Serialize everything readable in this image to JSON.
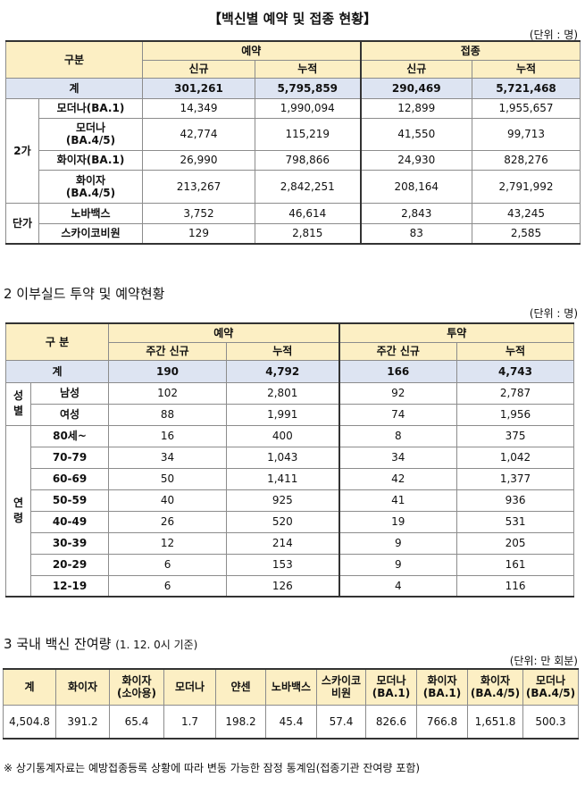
{
  "section1": {
    "title": "【백신별 예약 및 접종 현황】",
    "unit": "(단위 : 명)",
    "header": {
      "category": "구분",
      "reservation": "예약",
      "vaccination": "접종",
      "new": "신규",
      "cumulative": "누적"
    },
    "total": {
      "label": "계",
      "values": [
        "301,261",
        "5,795,859",
        "290,469",
        "5,721,468"
      ]
    },
    "group2": "2가",
    "groupSingle": "단가",
    "rows": [
      {
        "label": [
          "모더나(BA.1)"
        ],
        "values": [
          "14,349",
          "1,990,094",
          "12,899",
          "1,955,657"
        ]
      },
      {
        "label": [
          "모더나",
          "(BA.4/5)"
        ],
        "values": [
          "42,774",
          "115,219",
          "41,550",
          "99,713"
        ]
      },
      {
        "label": [
          "화이자(BA.1)"
        ],
        "values": [
          "26,990",
          "798,866",
          "24,930",
          "828,276"
        ]
      },
      {
        "label": [
          "화이자",
          "(BA.4/5)"
        ],
        "values": [
          "213,267",
          "2,842,251",
          "208,164",
          "2,791,992"
        ]
      },
      {
        "label": [
          "노바백스"
        ],
        "values": [
          "3,752",
          "46,614",
          "2,843",
          "43,245"
        ]
      },
      {
        "label": [
          "스카이코비원"
        ],
        "values": [
          "129",
          "2,815",
          "83",
          "2,585"
        ]
      }
    ]
  },
  "section2": {
    "title": "2 이부실드 투약 및 예약현황",
    "unit": "(단위 : 명)",
    "header": {
      "category": "구 분",
      "reservation": "예약",
      "administration": "투약",
      "weeklyNew": "주간 신규",
      "cumulative": "누적"
    },
    "total": {
      "label": "계",
      "values": [
        "190",
        "4,792",
        "166",
        "4,743"
      ]
    },
    "sexGroup": [
      "성",
      "별"
    ],
    "sexRows": [
      {
        "label": "남성",
        "values": [
          "102",
          "2,801",
          "92",
          "2,787"
        ]
      },
      {
        "label": "여성",
        "values": [
          "88",
          "1,991",
          "74",
          "1,956"
        ]
      }
    ],
    "ageGroup": [
      "연",
      "령"
    ],
    "ageRows": [
      {
        "label": "80세~",
        "values": [
          "16",
          "400",
          "8",
          "375"
        ]
      },
      {
        "label": "70-79",
        "values": [
          "34",
          "1,043",
          "34",
          "1,042"
        ]
      },
      {
        "label": "60-69",
        "values": [
          "50",
          "1,411",
          "42",
          "1,377"
        ]
      },
      {
        "label": "50-59",
        "values": [
          "40",
          "925",
          "41",
          "936"
        ]
      },
      {
        "label": "40-49",
        "values": [
          "26",
          "520",
          "19",
          "531"
        ]
      },
      {
        "label": "30-39",
        "values": [
          "12",
          "214",
          "9",
          "205"
        ]
      },
      {
        "label": "20-29",
        "values": [
          "6",
          "153",
          "9",
          "161"
        ]
      },
      {
        "label": "12-19",
        "values": [
          "6",
          "126",
          "4",
          "116"
        ]
      }
    ]
  },
  "section3": {
    "title": "3 국내 백신 잔여량",
    "titleNote": "(1. 12. 0시 기준)",
    "unit": "(단위: 만 회분)",
    "headers": [
      [
        "계"
      ],
      [
        "화이자"
      ],
      [
        "화이자",
        "(소아용)"
      ],
      [
        "모더나"
      ],
      [
        "얀센"
      ],
      [
        "노바백스"
      ],
      [
        "스카이코",
        "비원"
      ],
      [
        "모더나",
        "(BA.1)"
      ],
      [
        "화이자",
        "(BA.1)"
      ],
      [
        "화이자",
        "(BA.4/5)"
      ],
      [
        "모더나",
        "(BA.4/5)"
      ]
    ],
    "values": [
      "4,504.8",
      "391.2",
      "65.4",
      "1.7",
      "198.2",
      "45.4",
      "57.4",
      "826.6",
      "766.8",
      "1,651.8",
      "500.3"
    ]
  },
  "footnote": "※ 상기통계자료는 예방접종등록 상황에 따라 변동 가능한 잠정 통계임(접종기관 잔여량 포함)"
}
